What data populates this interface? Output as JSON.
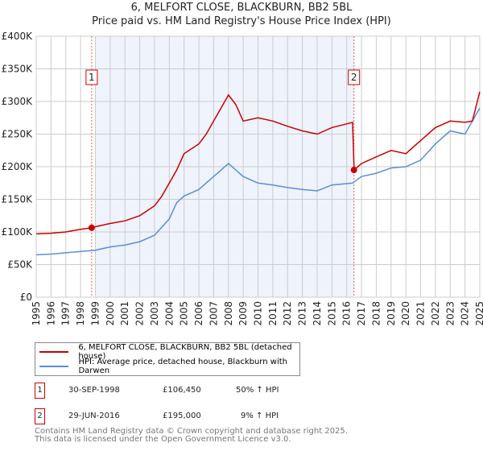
{
  "chart_data": {
    "type": "line",
    "title": "6, MELFORT CLOSE, BLACKBURN, BB2 5BL",
    "subtitle": "Price paid vs. HM Land Registry's House Price Index (HPI)",
    "xlim": [
      1995,
      2025
    ],
    "ylim": [
      0,
      400000
    ],
    "x_ticks": [
      "1995",
      "1996",
      "1997",
      "1998",
      "1999",
      "2000",
      "2001",
      "2002",
      "2003",
      "2004",
      "2005",
      "2006",
      "2007",
      "2008",
      "2009",
      "2010",
      "2011",
      "2012",
      "2013",
      "2014",
      "2015",
      "2016",
      "2017",
      "2018",
      "2019",
      "2020",
      "2021",
      "2022",
      "2023",
      "2024",
      "2025"
    ],
    "y_ticks": [
      {
        "v": 0,
        "label": "£0"
      },
      {
        "v": 50000,
        "label": "£50K"
      },
      {
        "v": 100000,
        "label": "£100K"
      },
      {
        "v": 150000,
        "label": "£150K"
      },
      {
        "v": 200000,
        "label": "£200K"
      },
      {
        "v": 250000,
        "label": "£250K"
      },
      {
        "v": 300000,
        "label": "£300K"
      },
      {
        "v": 350000,
        "label": "£350K"
      },
      {
        "v": 400000,
        "label": "£400K"
      }
    ],
    "grid": true,
    "shaded_range": [
      1999,
      2016.5
    ],
    "series": [
      {
        "name": "6, MELFORT CLOSE, BLACKBURN, BB2 5BL (detached house)",
        "color": "#cc0000",
        "x": [
          1995,
          1996,
          1997,
          1998,
          1998.75,
          1999,
          2000,
          2001,
          2002,
          2003,
          2003.5,
          2004,
          2004.5,
          2005,
          2006,
          2006.5,
          2007,
          2007.5,
          2008,
          2008.5,
          2009,
          2010,
          2011,
          2012,
          2013,
          2014,
          2015,
          2016.4,
          2016.5,
          2017,
          2018,
          2019,
          2020,
          2021,
          2022,
          2023,
          2024,
          2024.5,
          2025
        ],
        "y": [
          97000,
          98000,
          100000,
          104000,
          106450,
          108000,
          113000,
          117000,
          125000,
          140000,
          155000,
          175000,
          195000,
          220000,
          235000,
          250000,
          270000,
          290000,
          310000,
          295000,
          270000,
          275000,
          270000,
          262000,
          255000,
          250000,
          260000,
          268000,
          195000,
          205000,
          215000,
          225000,
          220000,
          240000,
          260000,
          270000,
          268000,
          270000,
          315000
        ]
      },
      {
        "name": "HPI: Average price, detached house, Blackburn with Darwen",
        "color": "#5b8fd4",
        "x": [
          1995,
          1996,
          1997,
          1998,
          1999,
          2000,
          2001,
          2002,
          2003,
          2004,
          2004.5,
          2005,
          2006,
          2007,
          2008,
          2009,
          2010,
          2011,
          2012,
          2013,
          2014,
          2015,
          2016.4,
          2017,
          2018,
          2019,
          2020,
          2021,
          2022,
          2023,
          2024,
          2025
        ],
        "y": [
          65000,
          66000,
          68000,
          70000,
          72000,
          77000,
          80000,
          85000,
          95000,
          120000,
          145000,
          155000,
          165000,
          185000,
          205000,
          185000,
          175000,
          172000,
          168000,
          165000,
          163000,
          172000,
          175000,
          185000,
          190000,
          198000,
          200000,
          210000,
          235000,
          255000,
          250000,
          290000
        ]
      }
    ],
    "annotations": [
      {
        "label": "1",
        "x": 1998.75,
        "y": 106450
      },
      {
        "label": "2",
        "x": 2016.49,
        "y": 195000
      }
    ]
  },
  "legend": {
    "red": "6, MELFORT CLOSE, BLACKBURN, BB2 5BL (detached house)",
    "blue": "HPI: Average price, detached house, Blackburn with Darwen"
  },
  "transactions": [
    {
      "num": "1",
      "date": "30-SEP-1998",
      "price": "£106,450",
      "hpi": "50% ↑ HPI"
    },
    {
      "num": "2",
      "date": "29-JUN-2016",
      "price": "£195,000",
      "hpi": "9% ↑ HPI"
    }
  ],
  "footer": {
    "line1": "Contains HM Land Registry data © Crown copyright and database right 2025.",
    "line2": "This data is licensed under the Open Government Licence v3.0."
  }
}
